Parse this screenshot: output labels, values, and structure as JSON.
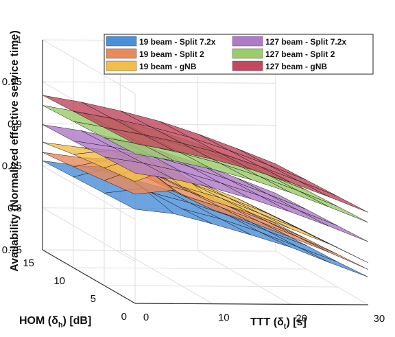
{
  "chart_data": {
    "type": "surface",
    "ylabel": "Availability (Normalized effective service time)",
    "x_axis": {
      "label": "TTT (δ_t) [s]",
      "label_main": "TTT (δ",
      "label_sub": "t",
      "label_end": ") [s]",
      "range": [
        0,
        30
      ],
      "ticks": [
        "0",
        "10",
        "20",
        "30"
      ]
    },
    "y_axis": {
      "label": "HOM (δ_h) [dB]",
      "label_main": "HOM (δ",
      "label_sub": "h",
      "label_end": ") [dB]",
      "range": [
        0,
        15
      ],
      "ticks": [
        "0",
        "5",
        "10",
        "15"
      ]
    },
    "z_axis": {
      "label": "Availability (Normalized effective service time)",
      "range": [
        0.75,
        1.0
      ],
      "ticks": [
        "0.75",
        "0.8",
        "0.85",
        "0.9",
        "0.95",
        "1"
      ]
    },
    "grid": true,
    "legend_position": "top-right",
    "ttt_samples": [
      0,
      5,
      10,
      15,
      20,
      25,
      30
    ],
    "hom_samples": [
      0,
      5,
      10,
      15
    ],
    "series": [
      {
        "name": "19 beam - Split 7.2x",
        "color": "#4a90d9",
        "z": [
          [
            0.862,
            0.857,
            0.845,
            0.832,
            0.818,
            0.8,
            0.783
          ],
          [
            0.86,
            0.866,
            0.842,
            0.83,
            0.815,
            0.797,
            0.78
          ],
          [
            0.858,
            0.87,
            0.84,
            0.828,
            0.813,
            0.795,
            0.778
          ],
          [
            0.856,
            0.85,
            0.838,
            0.826,
            0.811,
            0.793,
            0.776
          ]
        ]
      },
      {
        "name": "19 beam - Split 2",
        "color": "#e98a5a",
        "z": [
          [
            0.88,
            0.885,
            0.862,
            0.847,
            0.83,
            0.812,
            0.792
          ],
          [
            0.875,
            0.892,
            0.858,
            0.844,
            0.827,
            0.809,
            0.789
          ],
          [
            0.87,
            0.88,
            0.855,
            0.841,
            0.824,
            0.806,
            0.786
          ],
          [
            0.866,
            0.86,
            0.852,
            0.838,
            0.821,
            0.803,
            0.783
          ]
        ]
      },
      {
        "name": "19 beam - gNB",
        "color": "#f2be4a",
        "z": [
          [
            0.895,
            0.912,
            0.872,
            0.858,
            0.84,
            0.822,
            0.8
          ],
          [
            0.89,
            0.905,
            0.868,
            0.855,
            0.837,
            0.819,
            0.797
          ],
          [
            0.885,
            0.89,
            0.865,
            0.852,
            0.834,
            0.816,
            0.794
          ],
          [
            0.878,
            0.872,
            0.862,
            0.849,
            0.831,
            0.813,
            0.791
          ]
        ]
      },
      {
        "name": "127 beam - Split 7.2x",
        "color": "#b07ac8",
        "z": [
          [
            0.905,
            0.898,
            0.888,
            0.875,
            0.86,
            0.843,
            0.825
          ],
          [
            0.903,
            0.896,
            0.886,
            0.873,
            0.858,
            0.841,
            0.823
          ],
          [
            0.901,
            0.894,
            0.884,
            0.871,
            0.856,
            0.839,
            0.821
          ],
          [
            0.899,
            0.892,
            0.882,
            0.869,
            0.854,
            0.837,
            0.819
          ]
        ]
      },
      {
        "name": "127 beam - Split 2",
        "color": "#9acd68",
        "z": [
          [
            0.928,
            0.92,
            0.91,
            0.898,
            0.883,
            0.866,
            0.848
          ],
          [
            0.926,
            0.918,
            0.908,
            0.896,
            0.881,
            0.864,
            0.846
          ],
          [
            0.924,
            0.916,
            0.906,
            0.894,
            0.879,
            0.862,
            0.844
          ],
          [
            0.922,
            0.914,
            0.904,
            0.892,
            0.877,
            0.86,
            0.842
          ]
        ]
      },
      {
        "name": "127 beam - gNB",
        "color": "#c2485e",
        "z": [
          [
            0.94,
            0.932,
            0.922,
            0.91,
            0.895,
            0.878,
            0.86
          ],
          [
            0.938,
            0.93,
            0.92,
            0.908,
            0.893,
            0.876,
            0.858
          ],
          [
            0.936,
            0.928,
            0.918,
            0.906,
            0.891,
            0.874,
            0.856
          ],
          [
            0.934,
            0.926,
            0.916,
            0.904,
            0.889,
            0.872,
            0.854
          ]
        ]
      }
    ]
  }
}
